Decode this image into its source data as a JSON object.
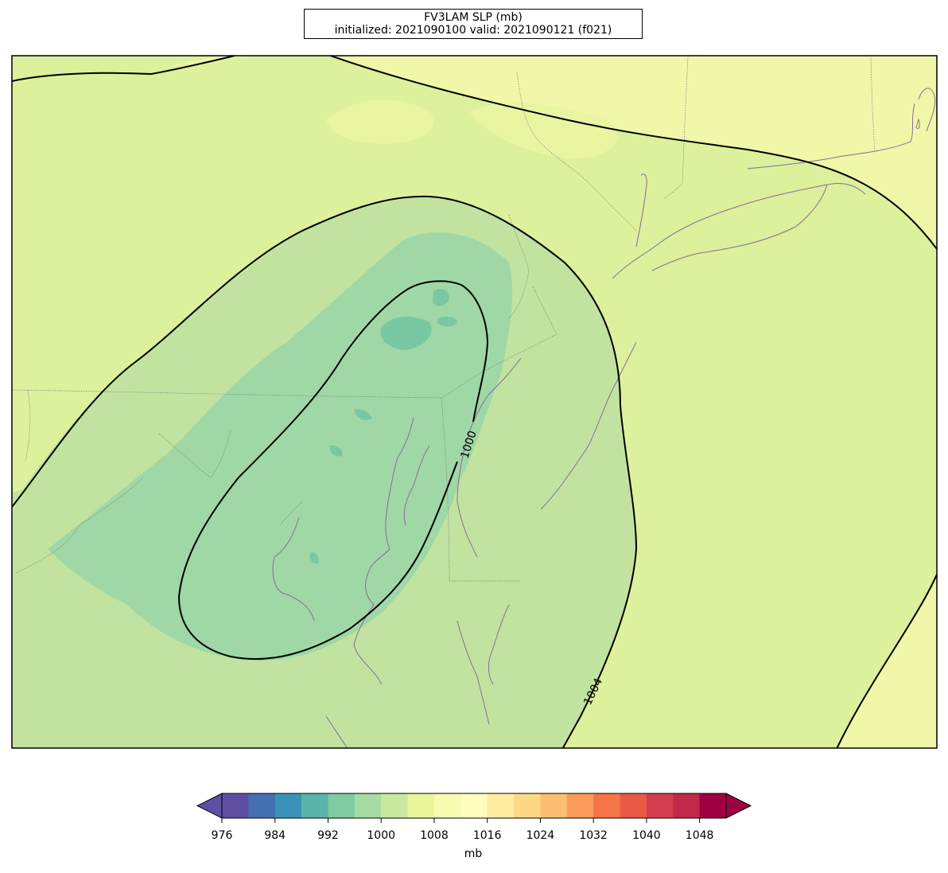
{
  "title": {
    "line1": "FV3LAM SLP (mb)",
    "line2": "initialized: 2021090100 valid: 2021090121 (f021)"
  },
  "contour_labels": {
    "inner": "1000",
    "outer": "1004"
  },
  "colorbar": {
    "unit_label": "mb",
    "extend": "both",
    "levels": [
      976,
      980,
      984,
      988,
      992,
      996,
      1000,
      1004,
      1008,
      1012,
      1016,
      1020,
      1024,
      1028,
      1032,
      1036,
      1040,
      1044,
      1048,
      1052
    ],
    "tick_labels": [
      "976",
      "984",
      "992",
      "1000",
      "1008",
      "1016",
      "1024",
      "1032",
      "1040",
      "1048"
    ],
    "colors": [
      "#5e4fa2",
      "#4470b1",
      "#3b92b8",
      "#59b4aa",
      "#7ecba4",
      "#a6dba4",
      "#cae9a0",
      "#e8f59b",
      "#f6fbb2",
      "#fffebe",
      "#feeda1",
      "#fdd985",
      "#fdbe6f",
      "#fa9c58",
      "#f57547",
      "#e85a47",
      "#d53e4f",
      "#c0294a",
      "#9e0142"
    ],
    "under_color": "#5e4fa2",
    "over_color": "#9e0142"
  },
  "map_fill_colors": {
    "ring_1000_1004": "#c2e3a0",
    "ring_996_1000": "#9fd8a6",
    "low_core_992_996": "#79c7a3",
    "field_1004_1008": "#ddf09b",
    "outer_1008_1012": "#f0f7a9"
  }
}
